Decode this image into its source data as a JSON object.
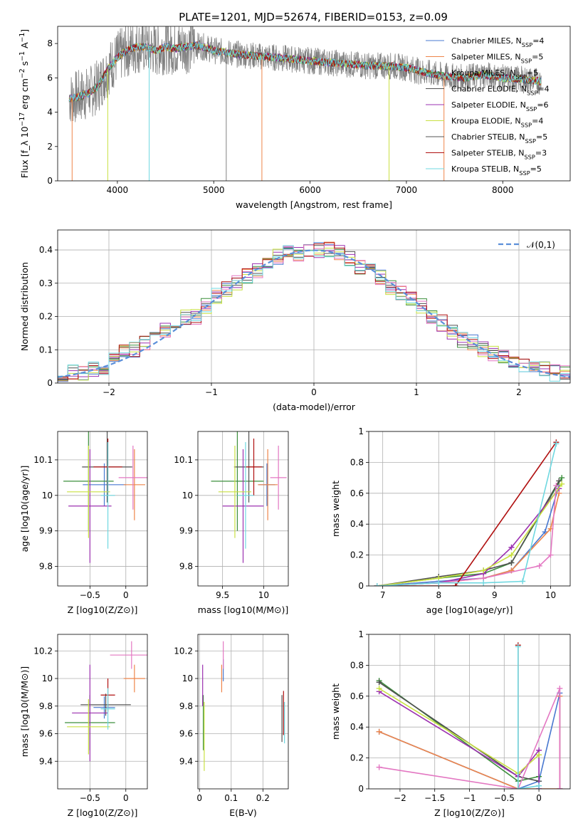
{
  "figure": {
    "title": "PLATE=1201, MJD=52674, FIBERID=0153, z=0.09"
  },
  "chart_data": [
    {
      "panel": "spectrum",
      "type": "line",
      "xlabel": "wavelength [Angstrom, rest frame]",
      "ylabel": "Flux [f_λ 10^-17 erg cm^-2 s^-1 A^-1]",
      "xlim": [
        3380,
        8700
      ],
      "ylim": [
        0,
        9
      ],
      "xticks": [
        4000,
        5000,
        6000,
        7000,
        8000
      ],
      "yticks": [
        0,
        2,
        4,
        6,
        8
      ],
      "grid": false,
      "legend_position": "right",
      "data_continuum_x": [
        3500,
        3600,
        3700,
        3800,
        3900,
        4000,
        4100,
        4200,
        4300,
        4400,
        4500,
        4600,
        4700,
        4800,
        4900,
        5000,
        5200,
        5400,
        5600,
        5800,
        6000,
        6200,
        6400,
        6600,
        6800,
        7000,
        7200,
        7400,
        7600,
        7800,
        8000,
        8200,
        8400
      ],
      "data_continuum_y": [
        4.8,
        4.9,
        5.1,
        5.5,
        6.5,
        7.2,
        7.6,
        7.8,
        7.8,
        7.6,
        7.8,
        7.7,
        7.8,
        7.9,
        7.8,
        7.6,
        7.4,
        7.3,
        7.2,
        7.1,
        7.0,
        6.9,
        6.8,
        6.7,
        6.7,
        6.6,
        6.3,
        6.1,
        6.0,
        6.2,
        6.0,
        5.9,
        5.8
      ],
      "series": [
        {
          "name": "Chabrier MILES, N_SSP=4",
          "color": "#4878d0"
        },
        {
          "name": "Salpeter MILES, N_SSP=5",
          "color": "#ee854a"
        },
        {
          "name": "Kroupa MILES, N_SSP=5",
          "color": "#3c8f3c"
        },
        {
          "name": "Chabrier ELODIE, N_SSP=4",
          "color": "#505050"
        },
        {
          "name": "Salpeter ELODIE, N_SSP=6",
          "color": "#9b30b0"
        },
        {
          "name": "Kroupa ELODIE, N_SSP=4",
          "color": "#c8e040"
        },
        {
          "name": "Chabrier STELIB, N_SSP=5",
          "color": "#555555"
        },
        {
          "name": "Salpeter STELIB, N_SSP=3",
          "color": "#b01010"
        },
        {
          "name": "Kroupa STELIB, N_SSP=5",
          "color": "#6fd8e0"
        }
      ]
    },
    {
      "panel": "residuals",
      "type": "line",
      "xlabel": "(data-model)/error",
      "ylabel": "Normed distribution",
      "xlim": [
        -2.5,
        2.5
      ],
      "ylim": [
        0,
        0.46
      ],
      "xticks": [
        -2,
        -1,
        0,
        1,
        2
      ],
      "yticks": [
        0.0,
        0.1,
        0.2,
        0.3,
        0.4
      ],
      "grid": true,
      "legend_position": "top-right",
      "reference_curve": {
        "name": "𝒩(0,1)",
        "mu": 0,
        "sigma": 1,
        "color": "#5b8fd9"
      },
      "bin_width": 0.1,
      "histogram_x": [
        -2.45,
        -2.35,
        -2.25,
        -2.15,
        -2.05,
        -1.95,
        -1.85,
        -1.75,
        -1.65,
        -1.55,
        -1.45,
        -1.35,
        -1.25,
        -1.15,
        -1.05,
        -0.95,
        -0.85,
        -0.75,
        -0.65,
        -0.55,
        -0.45,
        -0.35,
        -0.25,
        -0.15,
        -0.05,
        0.05,
        0.15,
        0.25,
        0.35,
        0.45,
        0.55,
        0.65,
        0.75,
        0.85,
        0.95,
        1.05,
        1.15,
        1.25,
        1.35,
        1.45,
        1.55,
        1.65,
        1.75,
        1.85,
        1.95,
        2.05,
        2.15,
        2.25,
        2.35,
        2.45
      ],
      "histogram_y": [
        0.02,
        0.03,
        0.03,
        0.04,
        0.05,
        0.07,
        0.09,
        0.1,
        0.12,
        0.14,
        0.16,
        0.18,
        0.2,
        0.2,
        0.23,
        0.26,
        0.28,
        0.3,
        0.32,
        0.34,
        0.36,
        0.38,
        0.39,
        0.39,
        0.4,
        0.4,
        0.4,
        0.39,
        0.37,
        0.35,
        0.34,
        0.32,
        0.29,
        0.27,
        0.25,
        0.23,
        0.2,
        0.18,
        0.15,
        0.13,
        0.12,
        0.1,
        0.09,
        0.08,
        0.06,
        0.05,
        0.04,
        0.04,
        0.03,
        0.03
      ]
    },
    {
      "panel": "age_vs_Z",
      "type": "scatter",
      "xlabel": "Z [log10(Z/Z⊙)]",
      "ylabel": "age [log10(age/yr)]",
      "xlim": [
        -0.95,
        0.3
      ],
      "ylim": [
        9.745,
        10.18
      ],
      "xticks": [
        -0.5,
        0.0
      ],
      "yticks": [
        9.8,
        9.9,
        10.0,
        10.1
      ],
      "grid": true,
      "points": [
        {
          "x": -0.3,
          "y": 10.03,
          "xerr": 0.3,
          "yerr": 0.06,
          "color": "#4878d0"
        },
        {
          "x": 0.12,
          "y": 10.03,
          "xerr": 0.15,
          "yerr": 0.1,
          "color": "#ee854a"
        },
        {
          "x": -0.52,
          "y": 10.04,
          "xerr": 0.35,
          "yerr": 0.14,
          "color": "#3c8f3c"
        },
        {
          "x": -0.26,
          "y": 10.08,
          "xerr": 0.35,
          "yerr": 0.1,
          "color": "#505050"
        },
        {
          "x": -0.5,
          "y": 9.97,
          "xerr": 0.3,
          "yerr": 0.16,
          "color": "#9b30b0"
        },
        {
          "x": -0.52,
          "y": 10.01,
          "xerr": 0.3,
          "yerr": 0.13,
          "color": "#c8e040"
        },
        {
          "x": 0.1,
          "y": 10.05,
          "xerr": 0.2,
          "yerr": 0.09,
          "color": "#e377c2"
        },
        {
          "x": -0.25,
          "y": 10.08,
          "xerr": 0.2,
          "yerr": 0.08,
          "color": "#b01010"
        },
        {
          "x": -0.25,
          "y": 10.0,
          "xerr": 0.1,
          "yerr": 0.15,
          "color": "#6fd8e0"
        }
      ]
    },
    {
      "panel": "age_vs_mass",
      "type": "scatter",
      "xlabel": "mass [log10(M/M⊙)]",
      "ylabel": "",
      "xlim": [
        9.2,
        10.3
      ],
      "ylim": [
        9.745,
        10.18
      ],
      "xticks": [
        9.5,
        10.0
      ],
      "yticks": [
        9.8,
        9.9,
        10.0,
        10.1
      ],
      "grid": true,
      "points": [
        {
          "x": 10.04,
          "y": 10.03,
          "xerr": 0.1,
          "yerr": 0.06,
          "color": "#4878d0"
        },
        {
          "x": 10.05,
          "y": 10.03,
          "xerr": 0.12,
          "yerr": 0.1,
          "color": "#ee854a"
        },
        {
          "x": 9.68,
          "y": 10.04,
          "xerr": 0.32,
          "yerr": 0.14,
          "color": "#3c8f3c"
        },
        {
          "x": 9.82,
          "y": 10.08,
          "xerr": 0.18,
          "yerr": 0.1,
          "color": "#505050"
        },
        {
          "x": 9.75,
          "y": 9.97,
          "xerr": 0.25,
          "yerr": 0.16,
          "color": "#9b30b0"
        },
        {
          "x": 9.65,
          "y": 10.01,
          "xerr": 0.2,
          "yerr": 0.13,
          "color": "#c8e040"
        },
        {
          "x": 10.18,
          "y": 10.05,
          "xerr": 0.1,
          "yerr": 0.09,
          "color": "#e377c2"
        },
        {
          "x": 9.88,
          "y": 10.08,
          "xerr": 0.1,
          "yerr": 0.08,
          "color": "#b01010"
        },
        {
          "x": 9.78,
          "y": 10.0,
          "xerr": 0.1,
          "yerr": 0.15,
          "color": "#6fd8e0"
        }
      ]
    },
    {
      "panel": "massweight_vs_age",
      "type": "line",
      "xlabel": "age [log10(age/yr)]",
      "ylabel": "mass weight",
      "xlim": [
        6.75,
        10.35
      ],
      "ylim": [
        0,
        1
      ],
      "xticks": [
        7,
        8,
        9,
        10
      ],
      "yticks": [
        0.0,
        0.2,
        0.4,
        0.6,
        0.8,
        1.0
      ],
      "grid": true,
      "series": [
        {
          "color": "#4878d0",
          "x": [
            6.9,
            8.0,
            8.8,
            9.3,
            9.9,
            10.15
          ],
          "y": [
            0.0,
            0.03,
            0.05,
            0.1,
            0.35,
            0.65
          ]
        },
        {
          "color": "#ee854a",
          "x": [
            6.9,
            8.0,
            8.8,
            9.3,
            10.0,
            10.15
          ],
          "y": [
            0.0,
            0.02,
            0.05,
            0.1,
            0.37,
            0.6
          ]
        },
        {
          "color": "#3c8f3c",
          "x": [
            6.9,
            8.0,
            8.8,
            9.3,
            10.2
          ],
          "y": [
            0.0,
            0.05,
            0.08,
            0.15,
            0.7
          ]
        },
        {
          "color": "#505050",
          "x": [
            6.9,
            8.0,
            8.8,
            9.3,
            10.15
          ],
          "y": [
            0.0,
            0.06,
            0.1,
            0.15,
            0.68
          ]
        },
        {
          "color": "#9b30b0",
          "x": [
            6.9,
            8.0,
            8.8,
            9.3,
            10.15
          ],
          "y": [
            0.0,
            0.02,
            0.08,
            0.25,
            0.63
          ]
        },
        {
          "color": "#c8e040",
          "x": [
            6.9,
            8.0,
            8.8,
            9.3,
            10.2
          ],
          "y": [
            0.0,
            0.05,
            0.1,
            0.2,
            0.66
          ]
        },
        {
          "color": "#e377c2",
          "x": [
            6.9,
            8.0,
            8.8,
            9.8,
            10.0,
            10.1
          ],
          "y": [
            0.0,
            0.02,
            0.05,
            0.13,
            0.2,
            0.65
          ]
        },
        {
          "color": "#b01010",
          "x": [
            6.9,
            8.3,
            10.1
          ],
          "y": [
            0.0,
            0.0,
            0.93
          ]
        },
        {
          "color": "#6fd8e0",
          "x": [
            6.9,
            8.0,
            8.8,
            9.5,
            10.1
          ],
          "y": [
            0.0,
            0.02,
            0.02,
            0.03,
            0.92
          ]
        }
      ]
    },
    {
      "panel": "mass_vs_Z",
      "type": "scatter",
      "xlabel": "Z [log10(Z/Z⊙)]",
      "ylabel": "mass [log10(M/M⊙)]",
      "xlim": [
        -0.95,
        0.3
      ],
      "ylim": [
        9.2,
        10.32
      ],
      "xticks": [
        -0.5,
        0.0
      ],
      "yticks": [
        9.4,
        9.6,
        9.8,
        10.0,
        10.2
      ],
      "grid": true,
      "points": [
        {
          "x": -0.3,
          "y": 9.79,
          "xerr": 0.15,
          "yerr": 0.08,
          "color": "#4878d0"
        },
        {
          "x": 0.12,
          "y": 10.0,
          "xerr": 0.15,
          "yerr": 0.1,
          "color": "#ee854a"
        },
        {
          "x": -0.5,
          "y": 9.68,
          "xerr": 0.35,
          "yerr": 0.2,
          "color": "#3c8f3c"
        },
        {
          "x": -0.28,
          "y": 9.81,
          "xerr": 0.35,
          "yerr": 0.08,
          "color": "#505050"
        },
        {
          "x": -0.5,
          "y": 9.75,
          "xerr": 0.25,
          "yerr": 0.35,
          "color": "#9b30b0"
        },
        {
          "x": -0.52,
          "y": 9.65,
          "xerr": 0.3,
          "yerr": 0.2,
          "color": "#c8e040"
        },
        {
          "x": 0.08,
          "y": 10.17,
          "xerr": 0.3,
          "yerr": 0.1,
          "color": "#e377c2"
        },
        {
          "x": -0.25,
          "y": 9.88,
          "xerr": 0.1,
          "yerr": 0.12,
          "color": "#b01010"
        },
        {
          "x": -0.25,
          "y": 9.78,
          "xerr": 0.1,
          "yerr": 0.15,
          "color": "#6fd8e0"
        }
      ]
    },
    {
      "panel": "mass_vs_EBV",
      "type": "scatter",
      "xlabel": "E(B-V)",
      "ylabel": "",
      "xlim": [
        -0.005,
        0.28
      ],
      "ylim": [
        9.2,
        10.32
      ],
      "xticks": [
        0.0,
        0.1,
        0.2
      ],
      "yticks": [
        9.4,
        9.6,
        9.8,
        10.0,
        10.2
      ],
      "grid": true,
      "points": [
        {
          "x": 0.075,
          "y": 10.06,
          "yerr": 0.08,
          "color": "#4878d0"
        },
        {
          "x": 0.07,
          "y": 10.0,
          "yerr": 0.1,
          "color": "#ee854a"
        },
        {
          "x": 0.012,
          "y": 9.68,
          "yerr": 0.2,
          "color": "#3c8f3c"
        },
        {
          "x": 0.26,
          "y": 9.71,
          "yerr": 0.17,
          "color": "#505050"
        },
        {
          "x": 0.01,
          "y": 9.95,
          "yerr": 0.15,
          "color": "#9b30b0"
        },
        {
          "x": 0.015,
          "y": 9.58,
          "yerr": 0.25,
          "color": "#c8e040"
        },
        {
          "x": 0.075,
          "y": 10.17,
          "yerr": 0.1,
          "color": "#e377c2"
        },
        {
          "x": 0.265,
          "y": 9.75,
          "yerr": 0.16,
          "color": "#b01010"
        },
        {
          "x": 0.268,
          "y": 9.68,
          "yerr": 0.15,
          "color": "#6fd8e0"
        }
      ]
    },
    {
      "panel": "massweight_vs_Z",
      "type": "line",
      "xlabel": "Z [log10(Z/Z⊙)]",
      "ylabel": "mass weight",
      "xlim": [
        -2.45,
        0.45
      ],
      "ylim": [
        0,
        1
      ],
      "xticks": [
        -2.0,
        -1.5,
        -1.0,
        -0.5,
        0.0
      ],
      "yticks": [
        0.0,
        0.2,
        0.4,
        0.6,
        0.8,
        1.0
      ],
      "grid": true,
      "series": [
        {
          "color": "#4878d0",
          "x": [
            -2.3,
            -0.3,
            0.0,
            0.3,
            0.3
          ],
          "y": [
            0.37,
            0.0,
            0.05,
            0.62,
            0.0
          ]
        },
        {
          "color": "#ee854a",
          "x": [
            -2.3,
            -0.3,
            0.3,
            0.3
          ],
          "y": [
            0.37,
            0.0,
            0.0,
            0.6
          ]
        },
        {
          "color": "#3c8f3c",
          "x": [
            -2.3,
            -0.3,
            0.0
          ],
          "y": [
            0.7,
            0.05,
            0.08
          ]
        },
        {
          "color": "#505050",
          "x": [
            -2.3,
            -0.3,
            0.0
          ],
          "y": [
            0.69,
            0.08,
            0.05
          ]
        },
        {
          "color": "#9b30b0",
          "x": [
            -2.3,
            -0.3,
            0.0,
            0.0
          ],
          "y": [
            0.63,
            0.08,
            0.25,
            0.0
          ]
        },
        {
          "color": "#c8e040",
          "x": [
            -2.3,
            -0.3,
            0.0
          ],
          "y": [
            0.65,
            0.1,
            0.22
          ]
        },
        {
          "color": "#e377c2",
          "x": [
            -2.3,
            -0.3,
            0.3,
            0.3
          ],
          "y": [
            0.14,
            0.0,
            0.65,
            0.0
          ]
        },
        {
          "color": "#b01010",
          "x": [
            -0.3,
            -0.3
          ],
          "y": [
            0.93,
            0.0
          ]
        },
        {
          "color": "#6fd8e0",
          "x": [
            -0.3,
            -0.3,
            0.0
          ],
          "y": [
            0.92,
            0.0,
            0.02
          ]
        }
      ]
    }
  ]
}
